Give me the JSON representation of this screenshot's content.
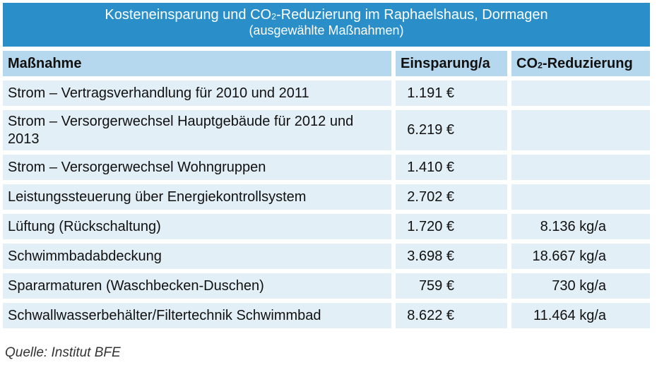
{
  "title": {
    "line1_pre": "Kosteneinsparung und CO",
    "line1_sub": "2",
    "line1_post": "-Reduzierung im Raphaelshaus, Dormagen",
    "line2": "(ausgewählte Maßnahmen)"
  },
  "table": {
    "headers": {
      "measure": "Maßnahme",
      "savings": "Einsparung/a",
      "co2_pre": "CO",
      "co2_sub": "2",
      "co2_post": "-Reduzierung"
    },
    "rows": [
      {
        "measure": "Strom – Vertragsverhandlung für 2010 und 2011",
        "savings": "1.191 €",
        "co2": ""
      },
      {
        "measure": "Strom – Versorgerwechsel Hauptgebäude für 2012 und 2013",
        "savings": "6.219 €",
        "co2": ""
      },
      {
        "measure": "Strom – Versorgerwechsel Wohngruppen",
        "savings": "1.410 €",
        "co2": ""
      },
      {
        "measure": "Leistungssteuerung über Energiekontrollsystem",
        "savings": "2.702 €",
        "co2": ""
      },
      {
        "measure": "Lüftung (Rückschaltung)",
        "savings": "1.720 €",
        "co2": "8.136 kg/a"
      },
      {
        "measure": "Schwimmbadabdeckung",
        "savings": "3.698 €",
        "co2": "18.667 kg/a"
      },
      {
        "measure": "Spararmaturen (Waschbecken-Duschen)",
        "savings": "759 €",
        "co2": "730 kg/a"
      },
      {
        "measure": "Schwallwasserbehälter/Filtertechnik Schwimmbad",
        "savings": "8.622 €",
        "co2": "11.464 kg/a"
      }
    ]
  },
  "source": "Quelle: Institut BFE"
}
